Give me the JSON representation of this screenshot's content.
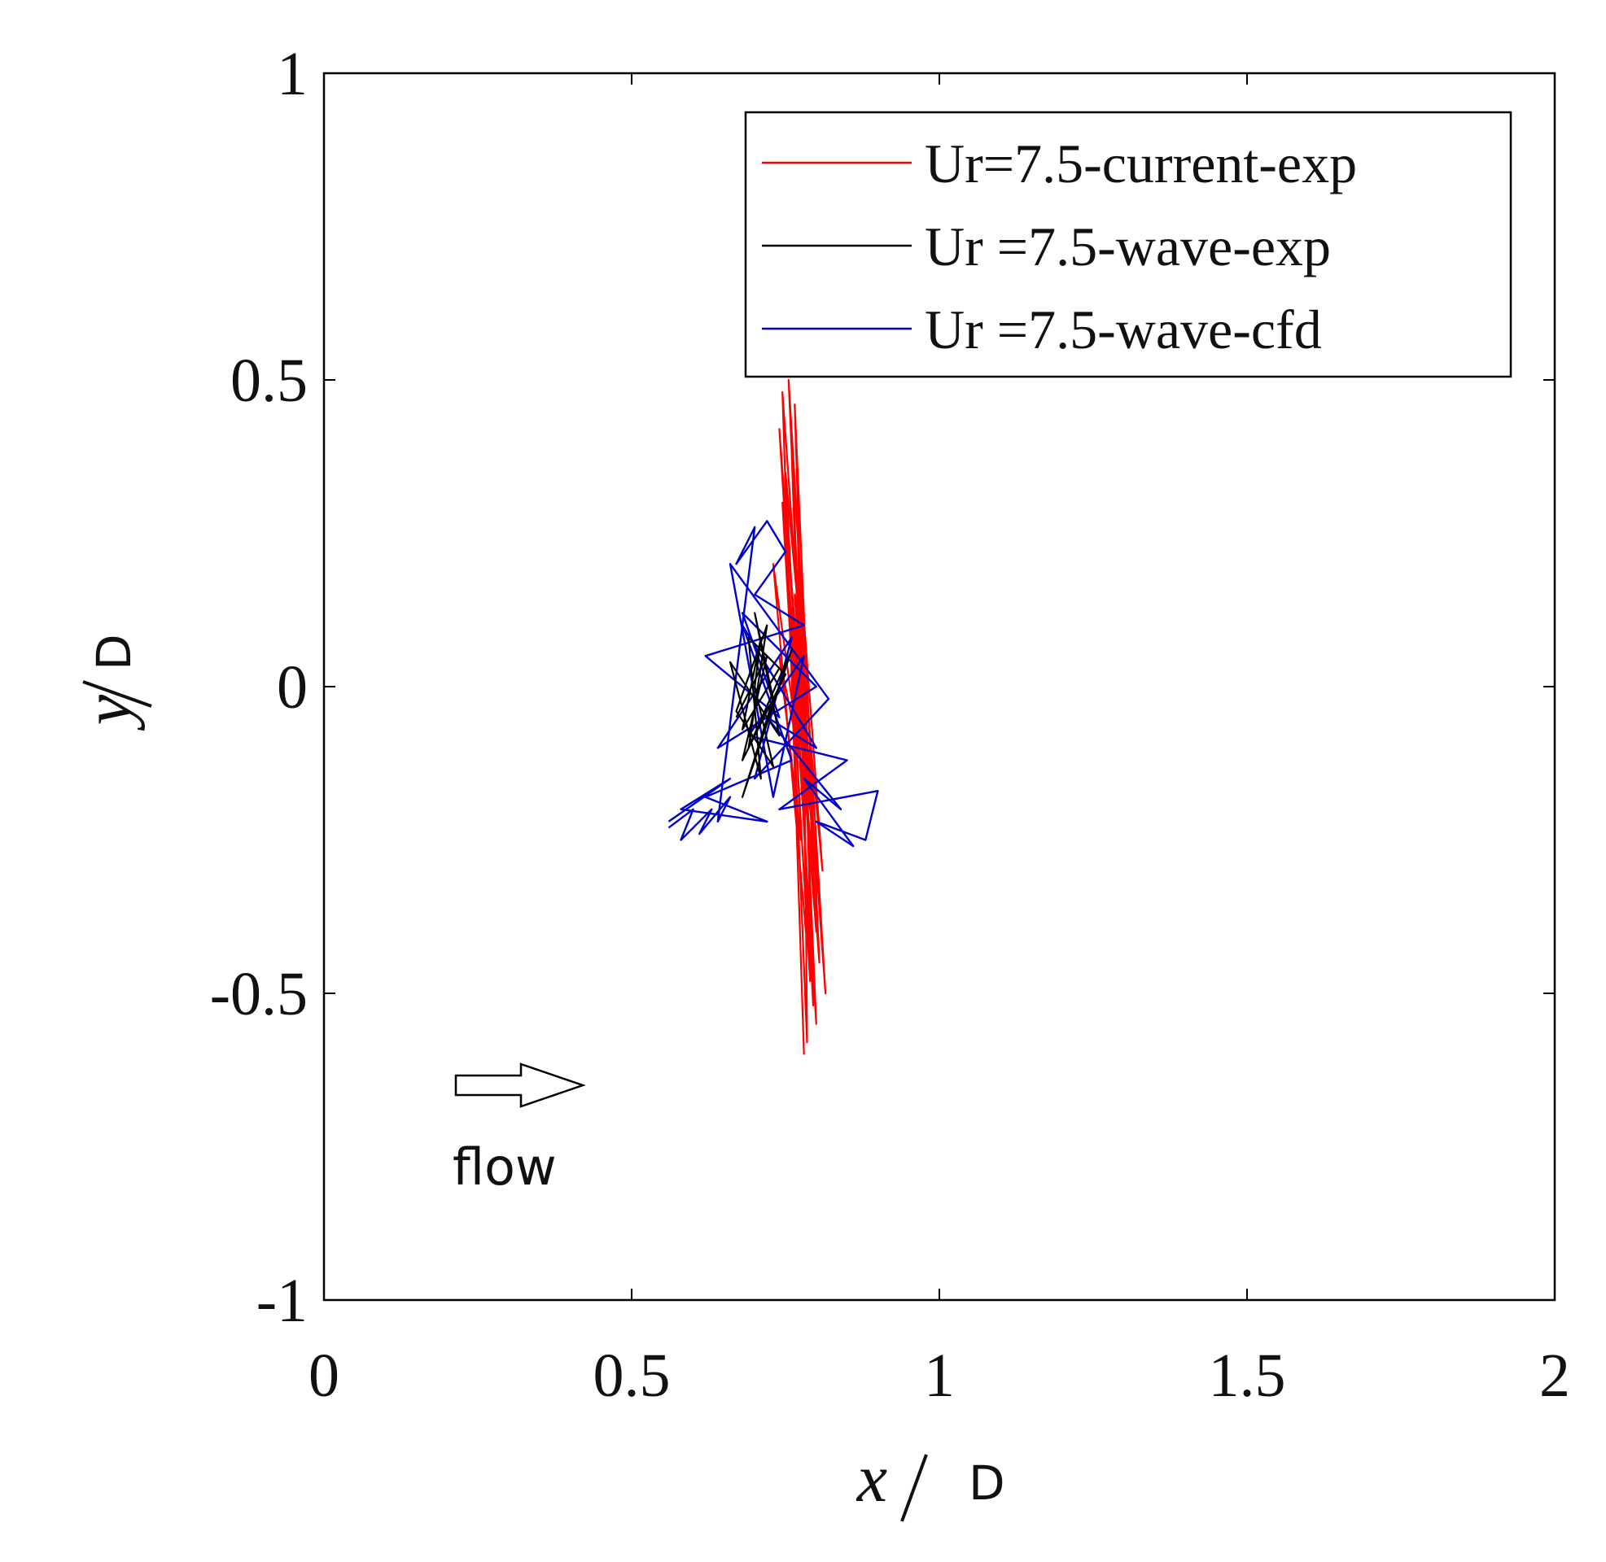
{
  "chart_data": {
    "type": "line",
    "xlabel": {
      "variable": "x",
      "unit": "D"
    },
    "ylabel": {
      "variable": "y",
      "unit": "D"
    },
    "xlim": [
      0,
      2
    ],
    "ylim": [
      -1,
      1
    ],
    "xticks": [
      0,
      0.5,
      1,
      1.5,
      2
    ],
    "xtick_labels": [
      "0",
      "0.5",
      "1",
      "1.5",
      "2"
    ],
    "yticks": [
      -1,
      -0.5,
      0,
      0.5,
      1
    ],
    "ytick_labels": [
      "-1",
      "-0.5",
      "0",
      "0.5",
      "1"
    ],
    "grid": false,
    "legend_position": "top-right",
    "series": [
      {
        "name": "Ur=7.5-current-exp",
        "color": "#ff0000",
        "x": [
          0.78,
          0.745,
          0.815,
          0.755,
          0.8,
          0.74,
          0.805,
          0.765,
          0.795,
          0.75,
          0.81,
          0.76,
          0.79,
          0.745,
          0.8,
          0.77,
          0.785,
          0.73,
          0.805,
          0.76,
          0.775,
          0.74,
          0.79,
          0.765,
          0.8,
          0.75,
          0.785,
          0.78
        ],
        "y": [
          -0.6,
          0.48,
          -0.5,
          0.5,
          -0.55,
          0.42,
          -0.45,
          0.46,
          -0.52,
          0.35,
          -0.3,
          0.38,
          -0.48,
          0.3,
          -0.4,
          0.25,
          -0.42,
          0.2,
          -0.35,
          0.1,
          -0.25,
          0.05,
          -0.2,
          0.15,
          -0.3,
          0.28,
          -0.58,
          0.0
        ]
      },
      {
        "name": "Ur =7.5-wave-exp",
        "color": "#000000",
        "x": [
          0.67,
          0.72,
          0.68,
          0.75,
          0.69,
          0.71,
          0.66,
          0.74,
          0.7,
          0.73,
          0.68,
          0.76,
          0.69,
          0.72,
          0.67,
          0.73,
          0.7,
          0.71,
          0.68,
          0.74
        ],
        "y": [
          -0.05,
          0.05,
          -0.12,
          0.02,
          0.08,
          -0.15,
          0.04,
          -0.08,
          0.12,
          -0.02,
          -0.18,
          0.06,
          -0.1,
          0.1,
          -0.04,
          -0.13,
          0.0,
          0.08,
          -0.07,
          0.03
        ]
      },
      {
        "name": "Ur =7.5-wave-cfd",
        "color": "#0000cc",
        "x": [
          0.56,
          0.6,
          0.58,
          0.63,
          0.61,
          0.66,
          0.64,
          0.7,
          0.67,
          0.72,
          0.75,
          0.7,
          0.78,
          0.62,
          0.74,
          0.68,
          0.8,
          0.64,
          0.76,
          0.7,
          0.82,
          0.66,
          0.73,
          0.78,
          0.69,
          0.85,
          0.74,
          0.9,
          0.88,
          0.8,
          0.86,
          0.78,
          0.84,
          0.72,
          0.8,
          0.68,
          0.76,
          0.62,
          0.72,
          0.58,
          0.66,
          0.56
        ],
        "y": [
          -0.23,
          -0.2,
          -0.25,
          -0.2,
          -0.24,
          -0.18,
          -0.22,
          0.26,
          0.2,
          0.27,
          0.22,
          0.15,
          0.1,
          0.05,
          -0.05,
          0.12,
          0.0,
          -0.1,
          0.08,
          -0.15,
          -0.02,
          0.2,
          -0.18,
          0.05,
          -0.08,
          -0.12,
          -0.2,
          -0.17,
          -0.25,
          -0.22,
          -0.26,
          -0.15,
          -0.2,
          -0.05,
          -0.1,
          0.1,
          -0.12,
          -0.18,
          -0.22,
          -0.2,
          -0.15,
          -0.22
        ]
      }
    ],
    "annotations": [
      {
        "text": "flow",
        "type": "arrow",
        "direction": "right",
        "x": 0.22,
        "y": -0.65
      }
    ]
  }
}
